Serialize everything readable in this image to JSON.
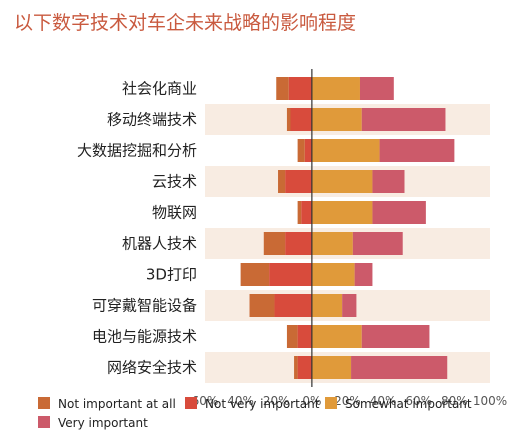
{
  "title": "以下数字技术对车企未来战略的影响程度",
  "colors": {
    "not_important_at_all": "#c96a35",
    "not_very_important": "#d84b3c",
    "somewhat_important": "#e09a3a",
    "very_important": "#cc5a6a",
    "stripe": "#f8ece2",
    "axis": "#333333"
  },
  "chart_data": {
    "type": "bar",
    "orientation": "horizontal-diverging",
    "title": "以下数字技术对车企未来战略的影响程度",
    "xlabel": "",
    "ylabel": "",
    "xlim": [
      -60,
      100
    ],
    "xticks": [
      "60%",
      "40%",
      "20%",
      "0%",
      "20%",
      "40%",
      "60%",
      "80%",
      "100%"
    ],
    "categories": [
      "社会化商业",
      "移动终端技术",
      "大数据挖掘和分析",
      "云技术",
      "物联网",
      "机器人技术",
      "3D打印",
      "可穿戴智能设备",
      "电池与能源技术",
      "网络安全技术"
    ],
    "series": [
      {
        "name": "Not important at all",
        "side": "negative",
        "values": [
          7,
          2,
          4,
          4,
          2,
          12,
          16,
          14,
          6,
          2
        ]
      },
      {
        "name": "Not very important",
        "side": "negative",
        "values": [
          13,
          12,
          4,
          15,
          6,
          15,
          24,
          21,
          8,
          8
        ]
      },
      {
        "name": "Somewhat important",
        "side": "positive",
        "values": [
          27,
          28,
          38,
          34,
          34,
          23,
          24,
          17,
          28,
          22
        ]
      },
      {
        "name": "Very important",
        "side": "positive",
        "values": [
          19,
          47,
          42,
          18,
          30,
          28,
          10,
          8,
          38,
          54
        ]
      }
    ],
    "legend": {
      "position": "bottom-left",
      "items": [
        "Not important at all",
        "Not very important",
        "Somewhat important",
        "Very important"
      ]
    },
    "grid": false
  }
}
